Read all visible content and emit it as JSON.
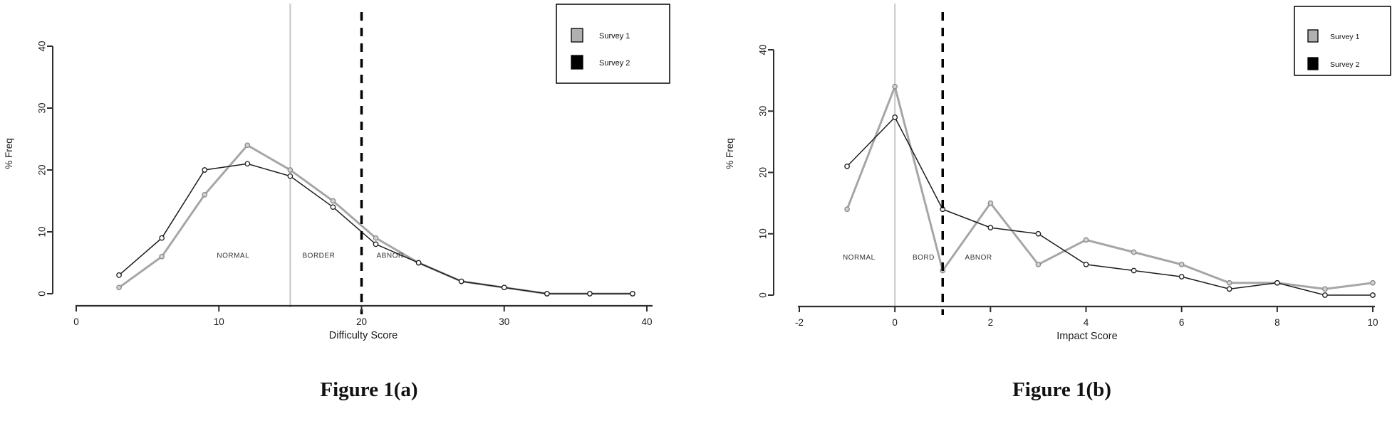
{
  "page": {
    "background": "#ffffff"
  },
  "figures": [
    {
      "caption": "Figure 1(a)"
    },
    {
      "caption": "Figure 1(b)"
    }
  ],
  "colors": {
    "survey1_line": "#a6a6a6",
    "survey1_marker_fill": "#d2d2d2",
    "survey1_marker_stroke": "#8a8a8a",
    "survey2_line": "#1c1c1c",
    "survey2_marker_fill": "#ffffff",
    "survey2_marker_stroke": "#1c1c1c",
    "axis": "#2e2e2e",
    "tick_label": "#1a1a1a",
    "refline_solid": "#c6c6c6",
    "refline_dashed": "#000000",
    "annotation_text": "#333333",
    "legend_border": "#000000",
    "legend_swatch1": "#b0b0b0",
    "legend_swatch2": "#000000"
  },
  "chart_data": [
    {
      "type": "line",
      "title": "",
      "xlabel": "Difficulty Score",
      "ylabel": "% Freq",
      "xlim": [
        0,
        40
      ],
      "ylim": [
        0,
        40
      ],
      "xticks": [
        0,
        10,
        20,
        30,
        40
      ],
      "yticks": [
        0,
        10,
        20,
        30,
        40
      ],
      "grid": false,
      "legend_position": "top-right",
      "x": [
        3,
        6,
        9,
        12,
        15,
        18,
        21,
        24,
        27,
        30,
        33,
        36,
        39
      ],
      "series": [
        {
          "name": "Survey 1",
          "values": [
            1,
            6,
            16,
            24,
            20,
            15,
            9,
            5,
            2,
            1,
            0,
            0,
            0
          ]
        },
        {
          "name": "Survey 2",
          "values": [
            3,
            9,
            20,
            21,
            19,
            14,
            8,
            5,
            2,
            1,
            0,
            0,
            0
          ]
        }
      ],
      "vlines": [
        {
          "x": 15,
          "style": "solid"
        },
        {
          "x": 20,
          "style": "dashed"
        }
      ],
      "annotations": [
        {
          "text": "NORMAL",
          "x": 11,
          "y": 5.8
        },
        {
          "text": "BORDER",
          "x": 17,
          "y": 5.8
        },
        {
          "text": "ABNOR",
          "x": 22,
          "y": 5.8
        }
      ]
    },
    {
      "type": "line",
      "title": "",
      "xlabel": "Impact Score",
      "ylabel": "% Freq",
      "xlim": [
        -2,
        10
      ],
      "ylim": [
        0,
        40
      ],
      "xticks": [
        -2,
        0,
        2,
        4,
        6,
        8,
        10
      ],
      "yticks": [
        0,
        10,
        20,
        30,
        40
      ],
      "grid": false,
      "legend_position": "top-right",
      "x": [
        -1,
        0,
        1,
        2,
        3,
        4,
        5,
        6,
        7,
        8,
        9,
        10
      ],
      "series": [
        {
          "name": "Survey 1",
          "values": [
            14,
            34,
            4,
            15,
            5,
            9,
            7,
            5,
            2,
            2,
            1,
            2
          ]
        },
        {
          "name": "Survey 2",
          "values": [
            21,
            29,
            14,
            11,
            10,
            5,
            4,
            3,
            1,
            2,
            0,
            0
          ]
        }
      ],
      "vlines": [
        {
          "x": 0,
          "style": "solid"
        },
        {
          "x": 1,
          "style": "dashed"
        }
      ],
      "annotations": [
        {
          "text": "NORMAL",
          "x": -0.75,
          "y": 5.8
        },
        {
          "text": "BORD",
          "x": 0.6,
          "y": 5.8
        },
        {
          "text": "ABNOR",
          "x": 1.75,
          "y": 5.8
        }
      ]
    }
  ],
  "legend": {
    "items": [
      {
        "label": "Survey 1"
      },
      {
        "label": "Survey 2"
      }
    ]
  }
}
